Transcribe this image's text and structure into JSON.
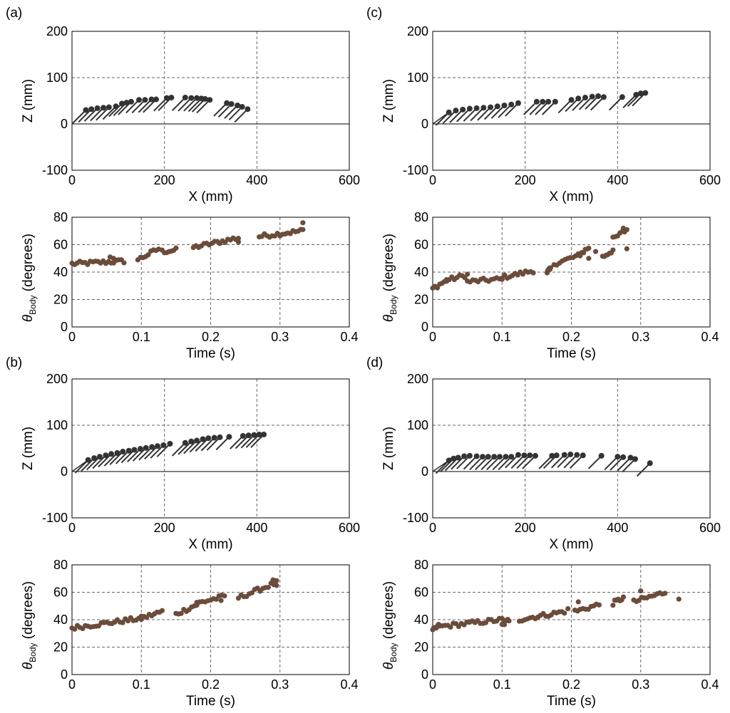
{
  "colors": {
    "traj": "#333333",
    "theta": "#6b4c3b",
    "grid": "#666666",
    "axis": "#000000"
  },
  "chart_data": [
    {
      "panel": "(a)",
      "traj": {
        "type": "scatter",
        "xlabel": "X (mm)",
        "ylabel": "Z (mm)",
        "xlim": [
          0,
          600
        ],
        "ylim": [
          -100,
          200
        ],
        "xticks": [
          "0",
          "200",
          "400",
          "600"
        ],
        "yticks": [
          "-100",
          "0",
          "100",
          "200"
        ],
        "dx": -28,
        "dz": -28,
        "points": [
          [
            30,
            30
          ],
          [
            42,
            32
          ],
          [
            55,
            34
          ],
          [
            68,
            35
          ],
          [
            80,
            36
          ],
          [
            95,
            38
          ],
          [
            108,
            44
          ],
          [
            118,
            46
          ],
          [
            128,
            48
          ],
          [
            145,
            52
          ],
          [
            158,
            52
          ],
          [
            172,
            53
          ],
          [
            182,
            53
          ],
          [
            205,
            56
          ],
          [
            215,
            57
          ],
          [
            245,
            57
          ],
          [
            258,
            56
          ],
          [
            270,
            56
          ],
          [
            280,
            55
          ],
          [
            288,
            54
          ],
          [
            298,
            52
          ],
          [
            335,
            45
          ],
          [
            345,
            43
          ],
          [
            358,
            40
          ],
          [
            368,
            37
          ],
          [
            380,
            32
          ]
        ]
      },
      "theta": {
        "type": "scatter",
        "xlabel": "Time (s)",
        "ylabel": "θ",
        "ylabel_sub": "Body",
        "ylabel_rest": " (degrees)",
        "xlim": [
          0,
          0.4
        ],
        "ylim": [
          0,
          80
        ],
        "xticks": [
          "0",
          "0.1",
          "0.2",
          "0.3",
          "0.4"
        ],
        "yticks": [
          "0",
          "20",
          "40",
          "60",
          "80"
        ],
        "segments": [
          [
            0,
            0.075,
            46,
            48
          ],
          [
            0.095,
            0.125,
            49,
            57
          ],
          [
            0.13,
            0.15,
            55,
            56
          ],
          [
            0.175,
            0.24,
            58,
            65
          ],
          [
            0.27,
            0.33,
            66,
            70
          ]
        ],
        "extra": [
          [
            0.333,
            76
          ],
          [
            0.333,
            71
          ],
          [
            0.24,
            62
          ],
          [
            0.055,
            51
          ],
          [
            0.06,
            50
          ]
        ]
      }
    },
    {
      "panel": "(c)",
      "traj": {
        "type": "scatter",
        "xlabel": "X (mm)",
        "ylabel": "Z (mm)",
        "xlim": [
          0,
          600
        ],
        "ylim": [
          -100,
          200
        ],
        "xticks": [
          "0",
          "200",
          "400",
          "600"
        ],
        "yticks": [
          "-100",
          "0",
          "100",
          "200"
        ],
        "dx": -28,
        "dz": -28,
        "points": [
          [
            35,
            25
          ],
          [
            50,
            29
          ],
          [
            65,
            31
          ],
          [
            80,
            33
          ],
          [
            95,
            34
          ],
          [
            110,
            35
          ],
          [
            125,
            36
          ],
          [
            140,
            38
          ],
          [
            155,
            40
          ],
          [
            170,
            42
          ],
          [
            185,
            45
          ],
          [
            225,
            48
          ],
          [
            238,
            48
          ],
          [
            250,
            48
          ],
          [
            265,
            48
          ],
          [
            300,
            52
          ],
          [
            315,
            55
          ],
          [
            330,
            57
          ],
          [
            345,
            59
          ],
          [
            358,
            60
          ],
          [
            370,
            58
          ],
          [
            410,
            58
          ],
          [
            440,
            63
          ],
          [
            450,
            66
          ],
          [
            460,
            67
          ]
        ]
      },
      "theta": {
        "type": "scatter",
        "xlabel": "Time (s)",
        "ylabel": "θ",
        "ylabel_sub": "Body",
        "ylabel_rest": " (degrees)",
        "xlim": [
          0,
          0.4
        ],
        "ylim": [
          0,
          80
        ],
        "xticks": [
          "0",
          "0.1",
          "0.2",
          "0.3",
          "0.4"
        ],
        "yticks": [
          "0",
          "20",
          "40",
          "60",
          "80"
        ],
        "segments": [
          [
            0,
            0.02,
            28,
            34
          ],
          [
            0.02,
            0.05,
            34,
            38
          ],
          [
            0.05,
            0.1,
            33,
            35
          ],
          [
            0.1,
            0.145,
            36,
            41
          ],
          [
            0.165,
            0.17,
            40,
            42
          ],
          [
            0.175,
            0.21,
            46,
            52
          ],
          [
            0.21,
            0.225,
            52,
            58
          ],
          [
            0.245,
            0.26,
            51,
            56
          ],
          [
            0.26,
            0.28,
            64,
            71
          ]
        ],
        "extra": [
          [
            0.28,
            57
          ],
          [
            0.275,
            72
          ],
          [
            0.225,
            50
          ],
          [
            0.235,
            55
          ]
        ]
      }
    },
    {
      "panel": "(b)",
      "traj": {
        "type": "scatter",
        "xlabel": "X (mm)",
        "ylabel": "Z (mm)",
        "xlim": [
          0,
          600
        ],
        "ylim": [
          -100,
          200
        ],
        "xticks": [
          "0",
          "200",
          "400",
          "600"
        ],
        "yticks": [
          "-100",
          "0",
          "100",
          "200"
        ],
        "dx": -28,
        "dz": -28,
        "points": [
          [
            35,
            25
          ],
          [
            48,
            29
          ],
          [
            60,
            32
          ],
          [
            73,
            35
          ],
          [
            85,
            38
          ],
          [
            98,
            40
          ],
          [
            110,
            43
          ],
          [
            123,
            45
          ],
          [
            135,
            47
          ],
          [
            148,
            49
          ],
          [
            160,
            51
          ],
          [
            173,
            53
          ],
          [
            185,
            55
          ],
          [
            198,
            57
          ],
          [
            212,
            60
          ],
          [
            245,
            62
          ],
          [
            258,
            65
          ],
          [
            270,
            67
          ],
          [
            283,
            70
          ],
          [
            295,
            72
          ],
          [
            308,
            73
          ],
          [
            320,
            74
          ],
          [
            340,
            75
          ],
          [
            370,
            77
          ],
          [
            382,
            78
          ],
          [
            394,
            79
          ],
          [
            405,
            80
          ],
          [
            415,
            80
          ]
        ]
      },
      "theta": {
        "type": "scatter",
        "xlabel": "Time (s)",
        "ylabel": "θ",
        "ylabel_sub": "Body",
        "ylabel_rest": " (degrees)",
        "xlim": [
          0,
          0.4
        ],
        "ylim": [
          0,
          80
        ],
        "xticks": [
          "0",
          "0.1",
          "0.2",
          "0.3",
          "0.4"
        ],
        "yticks": [
          "0",
          "20",
          "40",
          "60",
          "80"
        ],
        "segments": [
          [
            0,
            0.1,
            34,
            41
          ],
          [
            0.1,
            0.13,
            41,
            46
          ],
          [
            0.15,
            0.18,
            44,
            51
          ],
          [
            0.18,
            0.22,
            52,
            57
          ],
          [
            0.24,
            0.295,
            56,
            67
          ]
        ],
        "extra": [
          [
            0.29,
            69
          ],
          [
            0.295,
            65
          ],
          [
            0.215,
            54
          ]
        ]
      }
    },
    {
      "panel": "(d)",
      "traj": {
        "type": "scatter",
        "xlabel": "X (mm)",
        "ylabel": "Z (mm)",
        "xlim": [
          0,
          600
        ],
        "ylim": [
          -100,
          200
        ],
        "xticks": [
          "0",
          "200",
          "400",
          "600"
        ],
        "yticks": [
          "-100",
          "0",
          "100",
          "200"
        ],
        "dx": -28,
        "dz": -28,
        "points": [
          [
            35,
            24
          ],
          [
            45,
            28
          ],
          [
            55,
            30
          ],
          [
            68,
            33
          ],
          [
            80,
            34
          ],
          [
            95,
            33
          ],
          [
            108,
            32
          ],
          [
            120,
            32
          ],
          [
            133,
            32
          ],
          [
            145,
            32
          ],
          [
            158,
            32
          ],
          [
            170,
            32
          ],
          [
            185,
            36
          ],
          [
            198,
            35
          ],
          [
            210,
            35
          ],
          [
            222,
            34
          ],
          [
            258,
            34
          ],
          [
            268,
            35
          ],
          [
            285,
            36
          ],
          [
            298,
            37
          ],
          [
            312,
            36
          ],
          [
            325,
            35
          ],
          [
            365,
            34
          ],
          [
            400,
            32
          ],
          [
            412,
            31
          ],
          [
            428,
            30
          ],
          [
            438,
            27
          ],
          [
            470,
            18
          ]
        ]
      },
      "theta": {
        "type": "scatter",
        "xlabel": "Time (s)",
        "ylabel": "θ",
        "ylabel_sub": "Body",
        "ylabel_rest": " (degrees)",
        "xlim": [
          0,
          0.4
        ],
        "ylim": [
          0,
          80
        ],
        "xticks": [
          "0",
          "0.1",
          "0.2",
          "0.3",
          "0.4"
        ],
        "yticks": [
          "0",
          "20",
          "40",
          "60",
          "80"
        ],
        "segments": [
          [
            0,
            0.01,
            32,
            36
          ],
          [
            0.01,
            0.1,
            35,
            40
          ],
          [
            0.1,
            0.11,
            36,
            40
          ],
          [
            0.125,
            0.19,
            40,
            46
          ],
          [
            0.205,
            0.24,
            46,
            51
          ],
          [
            0.26,
            0.275,
            52,
            56
          ],
          [
            0.29,
            0.335,
            53,
            60
          ]
        ],
        "extra": [
          [
            0.355,
            55
          ],
          [
            0.21,
            53
          ],
          [
            0.3,
            61
          ],
          [
            0.195,
            48
          ]
        ]
      }
    }
  ]
}
